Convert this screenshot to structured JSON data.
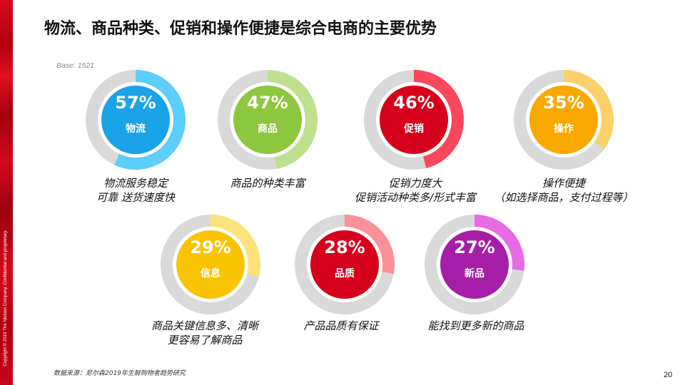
{
  "title": "物流、商品种类、促销和操作便捷是综合电商的主要优势",
  "base": "Base: 1521",
  "copyright": "Copyright © 2019 The Nielsen Company. Confidential and proprietary.",
  "source": "数据来源：尼尔森2019年生鲜购物者趋势研究",
  "page_number": "20",
  "colors": {
    "track": "#d9d9d9",
    "logistics_inner": "#1aa3e8",
    "logistics_arc": "#5dcdfa",
    "goods_inner": "#8dc63f",
    "goods_arc": "#bfe08f",
    "promo_inner": "#d7001c",
    "promo_arc": "#f9475b",
    "ops_inner": "#f9a800",
    "ops_arc": "#fdd06b",
    "info_inner": "#f9c300",
    "info_arc": "#fde27a",
    "quality_inner": "#d7001c",
    "quality_arc": "#fd8f99",
    "new_inner": "#a61ea8",
    "new_arc": "#e66be4"
  },
  "items": [
    {
      "value": 57,
      "pct_label": "57%",
      "category": "物流",
      "desc_line1": "物流服务稳定",
      "desc_line2": "可靠 送货速度快"
    },
    {
      "value": 47,
      "pct_label": "47%",
      "category": "商品",
      "desc_line1": "商品的种类丰富",
      "desc_line2": ""
    },
    {
      "value": 46,
      "pct_label": "46%",
      "category": "促销",
      "desc_line1": "促销力度大",
      "desc_line2": "促销活动种类多/形式丰富"
    },
    {
      "value": 35,
      "pct_label": "35%",
      "category": "操作",
      "desc_line1": "操作便捷",
      "desc_line2": "（如选择商品，支付过程等）"
    },
    {
      "value": 29,
      "pct_label": "29%",
      "category": "信息",
      "desc_line1": "商品关键信息多、清晰",
      "desc_line2": "更容易了解商品"
    },
    {
      "value": 28,
      "pct_label": "28%",
      "category": "品质",
      "desc_line1": "产品品质有保证",
      "desc_line2": ""
    },
    {
      "value": 27,
      "pct_label": "27%",
      "category": "新品",
      "desc_line1": "能找到更多新的商品",
      "desc_line2": ""
    }
  ],
  "chart_data": {
    "type": "pie",
    "subtype": "donut-gauges",
    "title": "物流、商品种类、促销和操作便捷是综合电商的主要优势",
    "base": "Base: 1521",
    "unit": "%",
    "categories": [
      "物流",
      "商品",
      "促销",
      "操作",
      "信息",
      "品质",
      "新品"
    ],
    "values": [
      57,
      47,
      46,
      35,
      29,
      28,
      27
    ],
    "descriptions": [
      "物流服务稳定 可靠 送货速度快",
      "商品的种类丰富",
      "促销力度大 促销活动种类多/形式丰富",
      "操作便捷（如选择商品，支付过程等）",
      "商品关键信息多、清晰 更容易了解商品",
      "产品品质有保证",
      "能找到更多新的商品"
    ],
    "source": "数据来源：尼尔森2019年生鲜购物者趋势研究",
    "legend": "none",
    "grid": false
  }
}
